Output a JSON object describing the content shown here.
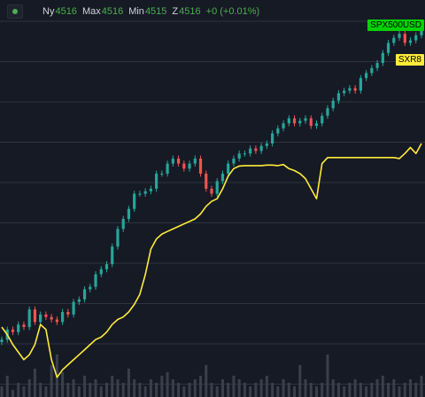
{
  "legend": {
    "open_label": "Ny",
    "open_value": "4516",
    "high_label": "Max",
    "high_value": "4516",
    "low_label": "Min",
    "low_value": "4515",
    "close_label": "Z",
    "close_value": "4516",
    "change": "+0 (+0.01%)"
  },
  "colors": {
    "background": "#161a25",
    "grid": "#2f3340",
    "up": "#26a69a",
    "down": "#ef5350",
    "accent_green": "#4caf50",
    "comparison_line": "#ffeb3b",
    "volume": "#3a3f4c"
  },
  "icons": [
    "symbol-status-icon"
  ],
  "chart_data": {
    "type": "line",
    "grid": true,
    "legend_position": "top-left",
    "series": [
      {
        "name": "SPX500USD",
        "style": "candles",
        "values": [
          3900,
          3920,
          3915,
          3930,
          3925,
          3960,
          3935,
          3950,
          3945,
          3940,
          3935,
          3955,
          3950,
          3975,
          3980,
          4000,
          4005,
          4030,
          4040,
          4050,
          4085,
          4120,
          4140,
          4160,
          4190,
          4190,
          4195,
          4200,
          4230,
          4230,
          4250,
          4260,
          4250,
          4240,
          4250,
          4260,
          4230,
          4200,
          4190,
          4215,
          4230,
          4250,
          4260,
          4270,
          4270,
          4280,
          4275,
          4285,
          4290,
          4310,
          4320,
          4330,
          4340,
          4330,
          4335,
          4340,
          4325,
          4330,
          4345,
          4360,
          4375,
          4390,
          4395,
          4400,
          4395,
          4420,
          4430,
          4440,
          4450,
          4470,
          4490,
          4500,
          4508,
          4490,
          4495,
          4505,
          4516
        ]
      },
      {
        "name": "SXR8",
        "style": "line",
        "values": [
          3925,
          3910,
          3890,
          3875,
          3860,
          3870,
          3890,
          3930,
          3920,
          3860,
          3825,
          3840,
          3850,
          3860,
          3870,
          3880,
          3890,
          3900,
          3905,
          3915,
          3930,
          3940,
          3945,
          3955,
          3970,
          3990,
          4030,
          4080,
          4100,
          4110,
          4115,
          4120,
          4125,
          4130,
          4135,
          4140,
          4150,
          4165,
          4175,
          4180,
          4200,
          4225,
          4240,
          4245,
          4246,
          4246,
          4246,
          4246,
          4247,
          4247,
          4246,
          4248,
          4240,
          4236,
          4230,
          4220,
          4200,
          4180,
          4250,
          4262,
          4262,
          4262,
          4262,
          4262,
          4262,
          4262,
          4262,
          4262,
          4262,
          4262,
          4262,
          4262,
          4260,
          4270,
          4282,
          4270,
          4290
        ]
      }
    ],
    "volume": [
      3,
      6,
      2,
      4,
      3,
      5,
      8,
      4,
      3,
      9,
      12,
      7,
      4,
      5,
      3,
      6,
      4,
      5,
      3,
      4,
      6,
      5,
      4,
      8,
      5,
      4,
      3,
      5,
      4,
      6,
      7,
      5,
      4,
      3,
      4,
      5,
      6,
      9,
      4,
      3,
      5,
      4,
      6,
      5,
      4,
      3,
      4,
      5,
      6,
      4,
      3,
      5,
      4,
      3,
      9,
      5,
      4,
      3,
      4,
      12,
      5,
      4,
      3,
      4,
      5,
      4,
      3,
      4,
      5,
      6,
      4,
      5,
      3,
      4,
      5,
      4,
      6
    ],
    "ylim": [
      3800,
      4540
    ],
    "price_labels": [
      {
        "text": "SPX500USD",
        "value": 4525,
        "color": "#00d200",
        "text_color": "#000000"
      },
      {
        "text": "SXR8",
        "value": 4455,
        "color": "#ffeb3b",
        "text_color": "#000000"
      }
    ]
  }
}
